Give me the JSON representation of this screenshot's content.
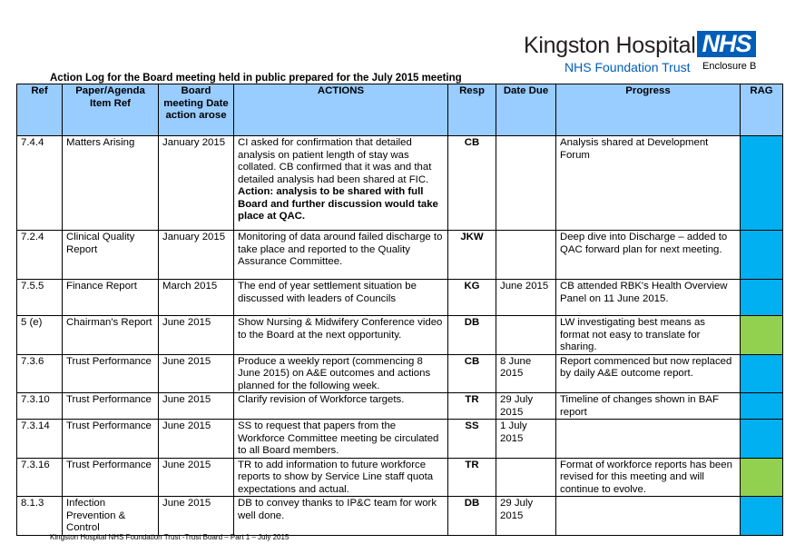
{
  "logo": {
    "name": "Kingston Hospital",
    "nhs": "NHS",
    "trust": "NHS Foundation Trust"
  },
  "enclosure": "Enclosure B",
  "title": "Action Log for the Board meeting held in public prepared for the July 2015 meeting",
  "colors": {
    "header": "#99ccff",
    "rag_blue": "#00b0f0",
    "rag_green": "#92d050"
  },
  "headers": [
    "Ref",
    "Paper/Agenda Item Ref",
    "Board meeting Date action arose",
    "ACTIONS",
    "Resp",
    "Date Due",
    "Progress",
    "RAG"
  ],
  "rows": [
    {
      "ref": "7.4.4",
      "paper": "Matters Arising",
      "date": "January 2015",
      "action": "CI asked for confirmation that detailed analysis on patient length of stay was collated. CB confirmed that it was and that detailed analysis had been shared at FIC.",
      "action_bold": "Action: analysis to be shared with full Board and further discussion would take place at QAC.",
      "resp": "CB",
      "due": "",
      "progress": "Analysis shared at Development Forum",
      "rag": "#00b0f0"
    },
    {
      "ref": "7.2.4",
      "paper": "Clinical Quality Report",
      "date": "January 2015",
      "action": "Monitoring of data around failed discharge to take place and reported to the Quality Assurance Committee.",
      "action_bold": "",
      "resp": "JKW",
      "due": "",
      "progress": "Deep dive into Discharge – added to QAC forward plan for next meeting.",
      "rag": "#00b0f0"
    },
    {
      "ref": "7.5.5",
      "paper": "Finance Report",
      "date": "March 2015",
      "action": "The end of year settlement situation be discussed with leaders of Councils",
      "action_bold": "",
      "resp": "KG",
      "due": "June 2015",
      "progress": "CB attended RBK's Health Overview Panel on 11 June 2015.",
      "rag": "#00b0f0"
    },
    {
      "ref": "5 (e)",
      "paper": "Chairman's Report",
      "date": "June 2015",
      "action": "Show Nursing & Midwifery Conference video to the Board at the next opportunity.",
      "action_bold": "",
      "resp": "DB",
      "due": "",
      "progress": "LW investigating best means as format not easy to translate for sharing.",
      "rag": "#92d050"
    },
    {
      "ref": "7.3.6",
      "paper": "Trust Performance",
      "date": "June 2015",
      "action": "Produce a weekly report (commencing 8 June 2015) on A&E outcomes and actions planned for the following week.",
      "action_bold": "",
      "resp": "CB",
      "due": "8 June 2015",
      "progress": "Report commenced but now replaced by daily A&E outcome report.",
      "rag": "#00b0f0"
    },
    {
      "ref": "7.3.10",
      "paper": "Trust Performance",
      "date": "June 2015",
      "action": "Clarify revision of Workforce targets.",
      "action_bold": "",
      "resp": "TR",
      "due": "29 July 2015",
      "progress": "Timeline of changes shown in BAF report",
      "rag": "#00b0f0"
    },
    {
      "ref": "7.3.14",
      "paper": "Trust Performance",
      "date": "June 2015",
      "action": "SS to request that papers from the Workforce Committee meeting be circulated to all Board members.",
      "action_bold": "",
      "resp": "SS",
      "due": "1 July 2015",
      "progress": "",
      "rag": "#00b0f0"
    },
    {
      "ref": "7.3.16",
      "paper": "Trust Performance",
      "date": "June 2015",
      "action": "TR to add information to future workforce reports to show by Service Line staff quota expectations and actual.",
      "action_bold": "",
      "resp": "TR",
      "due": "",
      "progress": "Format of workforce reports has been revised for this meeting and will continue to evolve.",
      "rag": "#92d050"
    },
    {
      "ref": "8.1.3",
      "paper": "Infection Prevention & Control",
      "date": "June 2015",
      "action": "DB to convey thanks to IP&C team for work well done.",
      "action_bold": "",
      "resp": "DB",
      "due": "29 July 2015",
      "progress": "",
      "rag": "#00b0f0"
    }
  ],
  "footer": "Kingston Hospital NHS Foundation Trust -Trust Board – Part 1 – July 2015"
}
